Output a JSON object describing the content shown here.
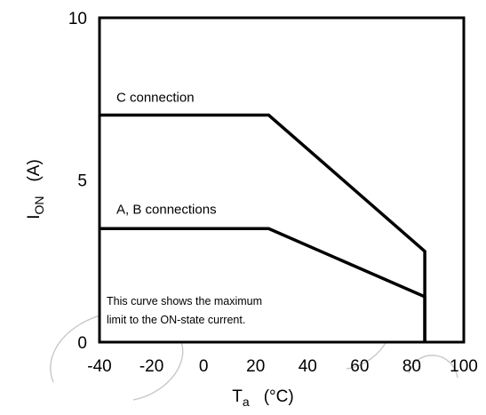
{
  "chart_data": {
    "type": "line",
    "xlabel": {
      "main": "T",
      "sub": "a",
      "unit": "(°C)"
    },
    "ylabel": {
      "main": "I",
      "sub": "ON",
      "unit": "(A)"
    },
    "xlim": [
      -40,
      100
    ],
    "ylim": [
      0,
      10
    ],
    "x_ticks": [
      -40,
      -20,
      0,
      20,
      40,
      60,
      80,
      100
    ],
    "y_ticks": [
      0,
      5,
      10
    ],
    "x_tick_labels": [
      "-40",
      "-20",
      "0",
      "20",
      "40",
      "60",
      "80",
      "100"
    ],
    "y_tick_labels": [
      "0",
      "5",
      "10"
    ],
    "grid": true,
    "series": [
      {
        "name": "C connection",
        "x": [
          -40,
          25,
          85,
          85
        ],
        "y": [
          7,
          7,
          2.8,
          0
        ]
      },
      {
        "name": "A, B connections",
        "x": [
          -40,
          25,
          85,
          85
        ],
        "y": [
          3.5,
          3.5,
          1.4,
          0
        ]
      }
    ],
    "annotations": [
      "This curve shows the maximum",
      "limit to the ON-state current."
    ]
  }
}
